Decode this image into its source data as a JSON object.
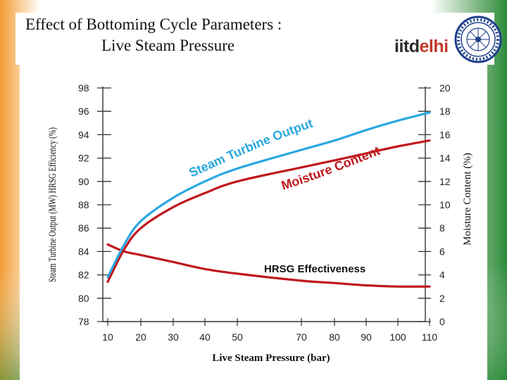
{
  "slide": {
    "title_line1": "Effect of Bottoming Cycle Parameters :",
    "title_line2": "Live Steam Pressure",
    "brand_part1": "iitd",
    "brand_part2": "elhi",
    "logo_icon": "iit-delhi-seal-icon",
    "colors": {
      "steam_turbine_line": "#29a8e0",
      "moisture_and_hrsg_line": "#c0171d",
      "brand_red": "#c0392b",
      "saffron": "#f39c32",
      "green": "#2e8b3a"
    }
  },
  "chart_data": {
    "type": "line",
    "xlabel": "Live Steam Pressure (bar)",
    "ylabel_left": "Steam Turbine Output (MW) HRSG Efficiency (%)",
    "ylabel_right": "Moisture Content (%)",
    "x_ticks": [
      10,
      20,
      30,
      40,
      50,
      70,
      80,
      90,
      100,
      110
    ],
    "y_left_ticks": [
      78,
      80,
      82,
      84,
      86,
      88,
      90,
      92,
      94,
      96,
      98
    ],
    "y_right_ticks": [
      0,
      2,
      4,
      6,
      8,
      10,
      12,
      14,
      16,
      18,
      20
    ],
    "ylim_left": [
      78,
      98
    ],
    "ylim_right": [
      0,
      20
    ],
    "grid": false,
    "series": [
      {
        "name": "Steam Turbine Output",
        "axis": "left",
        "color": "#29a8e0",
        "x": [
          10,
          15,
          20,
          30,
          40,
          50,
          70,
          80,
          90,
          100,
          110
        ],
        "values": [
          81.8,
          84.6,
          86.6,
          88.6,
          90.0,
          91.1,
          92.7,
          93.5,
          94.4,
          95.2,
          95.9
        ]
      },
      {
        "name": "Moisture Content",
        "axis": "right",
        "color": "#c0171d",
        "x": [
          10,
          15,
          20,
          30,
          40,
          50,
          70,
          80,
          90,
          100,
          110
        ],
        "values": [
          3.4,
          6.2,
          8.0,
          9.8,
          11.0,
          12.0,
          13.2,
          13.8,
          14.4,
          15.0,
          15.5
        ]
      },
      {
        "name": "HRSG Effectiveness",
        "axis": "left",
        "color": "#c0171d",
        "x": [
          10,
          15,
          20,
          30,
          40,
          50,
          70,
          80,
          90,
          100,
          110
        ],
        "values": [
          84.6,
          84.0,
          83.7,
          83.1,
          82.5,
          82.1,
          81.5,
          81.3,
          81.1,
          81.0,
          81.0
        ]
      }
    ],
    "annotations": [
      "Steam Turbine Output",
      "Moisture Content",
      "HRSG Effectiveness"
    ]
  }
}
